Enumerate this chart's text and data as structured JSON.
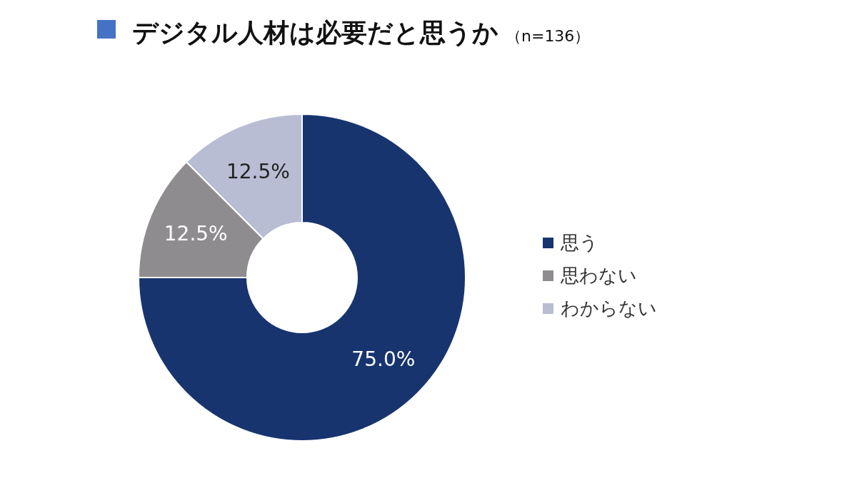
{
  "chart_data": {
    "type": "donut",
    "title": "デジタル人材は必要だと思うか",
    "subtitle": "（n=136）",
    "categories": [
      "思う",
      "思わない",
      "わからない"
    ],
    "values": [
      75.0,
      12.5,
      12.5
    ],
    "colors": [
      "#17346f",
      "#8f8c8f",
      "#b8bdd3"
    ],
    "value_labels": [
      "75.0%",
      "12.5%",
      "12.5%"
    ],
    "legend": "right"
  }
}
